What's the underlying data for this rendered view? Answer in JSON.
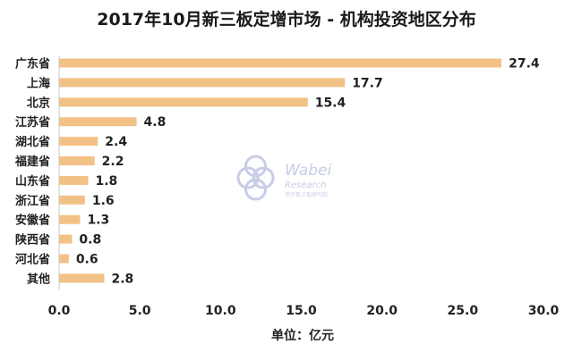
{
  "chart_data": {
    "type": "bar",
    "orientation": "horizontal",
    "title": "2017年10月新三板定增市场 - 机构投资地区分布",
    "categories": [
      "广东省",
      "上海",
      "北京",
      "江苏省",
      "湖北省",
      "福建省",
      "山东省",
      "浙江省",
      "安徽省",
      "陕西省",
      "河北省",
      "其他"
    ],
    "values": [
      27.4,
      17.7,
      15.4,
      4.8,
      2.4,
      2.2,
      1.8,
      1.6,
      1.3,
      0.8,
      0.6,
      2.8
    ],
    "value_labels": [
      "27.4",
      "17.7",
      "15.4",
      "4.8",
      "2.4",
      "2.2",
      "1.8",
      "1.6",
      "1.3",
      "0.8",
      "0.6",
      "2.8"
    ],
    "xlabel": "单位：亿元",
    "ylabel": "",
    "xlim": [
      0,
      30
    ],
    "xticks": [
      "0.0",
      "5.0",
      "10.0",
      "15.0",
      "20.0",
      "25.0",
      "30.0"
    ],
    "grid": false,
    "legend": "none",
    "bar_color": "#f2c185",
    "watermark": {
      "name": "Wabei",
      "sub": "Research",
      "tagline": "挖贝新三板研究院"
    }
  }
}
